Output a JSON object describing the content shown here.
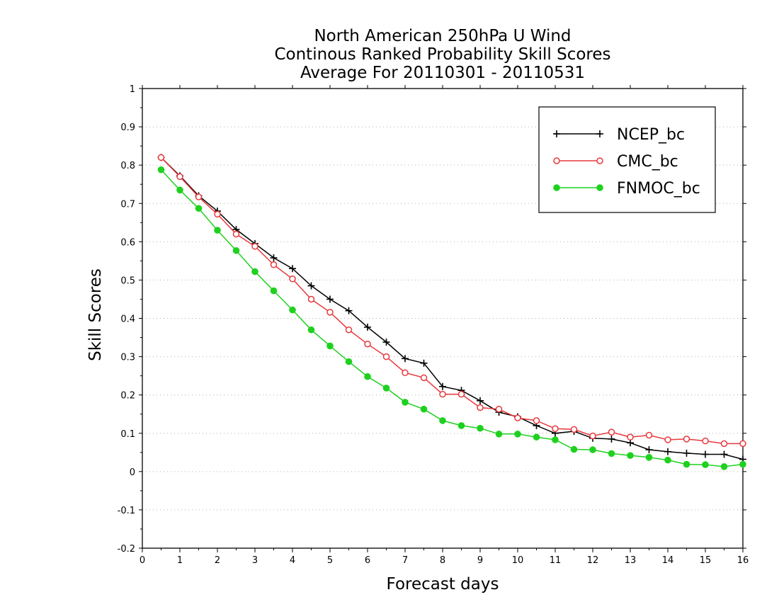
{
  "chart_data": {
    "type": "line",
    "title": [
      "North American 250hPa U Wind",
      "Continous Ranked Probability Skill Scores",
      "Average For 20110301 - 20110531"
    ],
    "xlabel": "Forecast days",
    "ylabel": "Skill Scores",
    "xlim": [
      0,
      16
    ],
    "ylim": [
      -0.2,
      1
    ],
    "xticks": [
      0,
      1,
      2,
      3,
      4,
      5,
      6,
      7,
      8,
      9,
      10,
      11,
      12,
      13,
      14,
      15,
      16
    ],
    "yticks": [
      -0.2,
      -0.1,
      0,
      0.1,
      0.2,
      0.3,
      0.4,
      0.5,
      0.6,
      0.7,
      0.8,
      0.9,
      1
    ],
    "grid": "horizontal-dotted",
    "legend_position": "top-right",
    "x": [
      0.5,
      1,
      1.5,
      2,
      2.5,
      3,
      3.5,
      4,
      4.5,
      5,
      5.5,
      6,
      6.5,
      7,
      7.5,
      8,
      8.5,
      9,
      9.5,
      10,
      10.5,
      11,
      11.5,
      12,
      12.5,
      13,
      13.5,
      14,
      14.5,
      15,
      15.5,
      16
    ],
    "series": [
      {
        "name": "NCEP_bc",
        "color": "#000000",
        "marker": "plus",
        "values": [
          0.82,
          0.772,
          0.72,
          0.68,
          0.632,
          0.595,
          0.558,
          0.53,
          0.485,
          0.45,
          0.42,
          0.377,
          0.338,
          0.295,
          0.283,
          0.222,
          0.212,
          0.185,
          0.155,
          0.143,
          0.12,
          0.1,
          0.105,
          0.087,
          0.085,
          0.075,
          0.057,
          0.052,
          0.048,
          0.045,
          0.045,
          0.032
        ]
      },
      {
        "name": "CMC_bc",
        "color": "#e8383c",
        "marker": "open-circle",
        "values": [
          0.82,
          0.77,
          0.717,
          0.672,
          0.62,
          0.588,
          0.54,
          0.503,
          0.45,
          0.416,
          0.37,
          0.333,
          0.3,
          0.258,
          0.245,
          0.202,
          0.202,
          0.167,
          0.163,
          0.14,
          0.133,
          0.112,
          0.11,
          0.093,
          0.103,
          0.09,
          0.095,
          0.083,
          0.085,
          0.08,
          0.073,
          0.073
        ]
      },
      {
        "name": "FNMOC_bc",
        "color": "#1fd11f",
        "marker": "filled-circle",
        "values": [
          0.788,
          0.735,
          0.687,
          0.63,
          0.577,
          0.522,
          0.472,
          0.422,
          0.37,
          0.328,
          0.287,
          0.248,
          0.218,
          0.181,
          0.163,
          0.133,
          0.12,
          0.113,
          0.098,
          0.098,
          0.09,
          0.083,
          0.058,
          0.057,
          0.047,
          0.042,
          0.037,
          0.03,
          0.019,
          0.018,
          0.013,
          0.019
        ]
      }
    ]
  }
}
